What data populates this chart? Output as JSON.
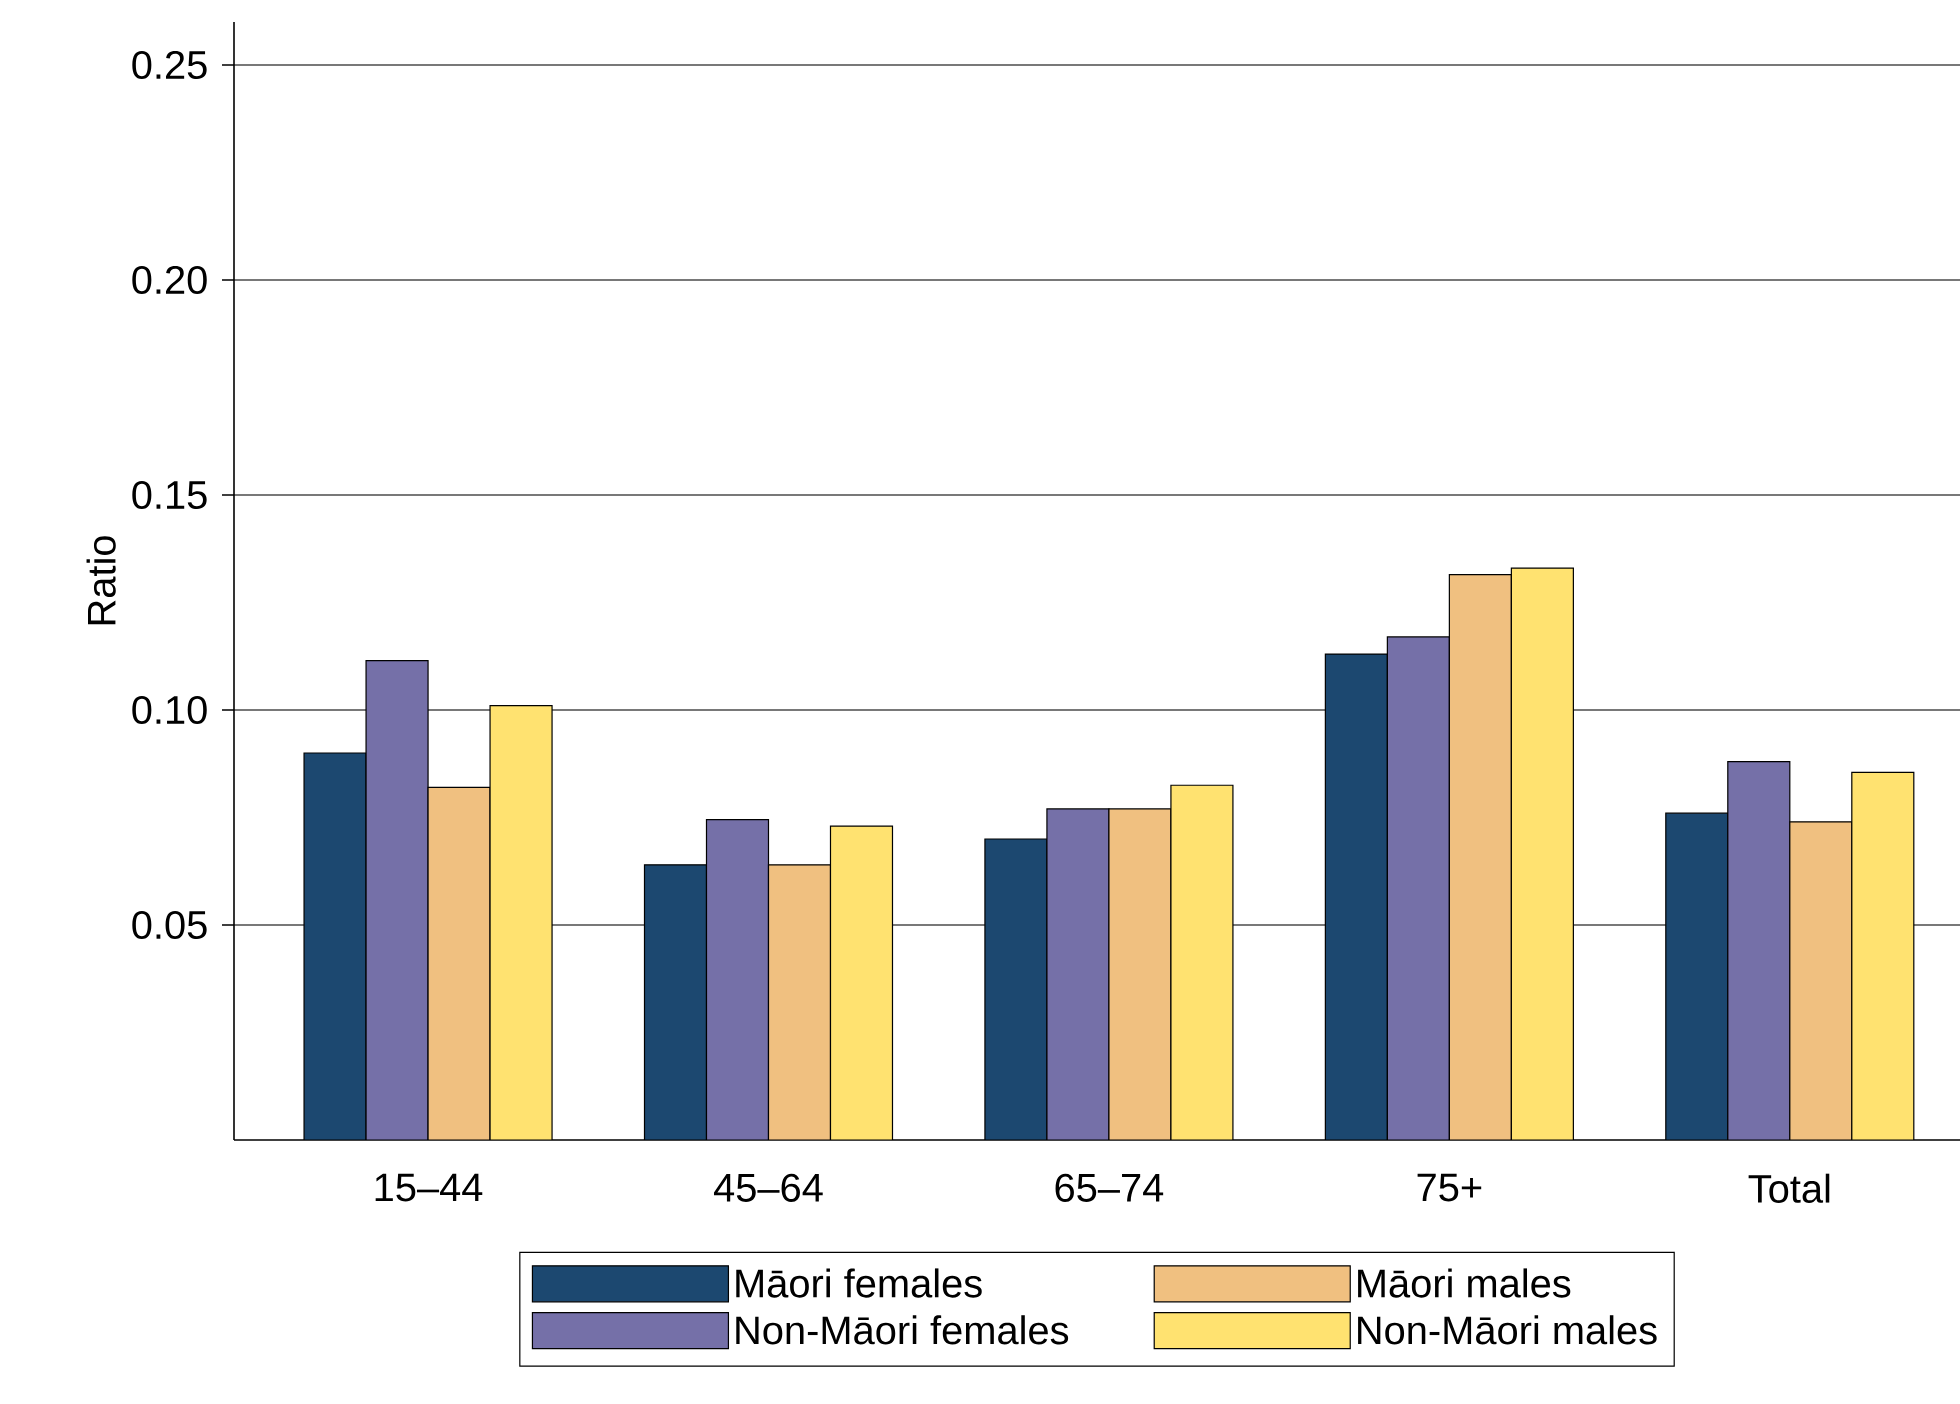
{
  "chart_data": {
    "type": "bar",
    "ylabel": "Ratio",
    "categories": [
      "15–44",
      "45–64",
      "65–74",
      "75+",
      "Total"
    ],
    "series": [
      {
        "name": "Māori females",
        "color": "#1c4870",
        "values": [
          0.09,
          0.064,
          0.07,
          0.113,
          0.076
        ]
      },
      {
        "name": "Non-Māori females",
        "color": "#7570a8",
        "values": [
          0.1115,
          0.0745,
          0.077,
          0.117,
          0.088
        ]
      },
      {
        "name": "Māori males",
        "color": "#f0c080",
        "values": [
          0.082,
          0.064,
          0.077,
          0.1315,
          0.074
        ]
      },
      {
        "name": "Non-Māori males",
        "color": "#ffe270",
        "values": [
          0.101,
          0.073,
          0.0825,
          0.133,
          0.0855
        ]
      }
    ],
    "ylim": [
      0,
      0.26
    ],
    "yticks": [
      {
        "value": 0.05,
        "label": "0.05"
      },
      {
        "value": 0.1,
        "label": "0.10"
      },
      {
        "value": 0.15,
        "label": "0.15"
      },
      {
        "value": 0.2,
        "label": "0.20"
      },
      {
        "value": 0.25,
        "label": "0.25"
      }
    ],
    "grid": "y",
    "legend": "bottom"
  }
}
